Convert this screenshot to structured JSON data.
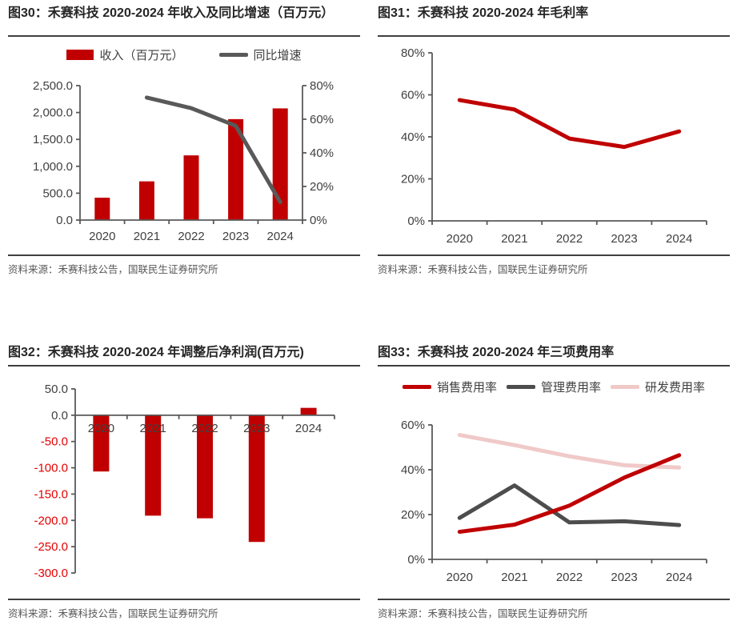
{
  "colors": {
    "red": "#c00000",
    "dark_gray": "#4d4d4d",
    "line_gray": "#595959",
    "pink": "#f0c9c9",
    "axis": "#595959",
    "tick_text": "#404040",
    "negative_tick": "#e60000",
    "title_text": "#262626",
    "source_text": "#595959"
  },
  "panels": [
    {
      "id": "fig30",
      "title": "图30：禾赛科技 2020-2024 年收入及同比增速（百万元）",
      "source": "资料来源：禾赛科技公告，国联民生证券研究所"
    },
    {
      "id": "fig31",
      "title": "图31：禾赛科技 2020-2024 年毛利率",
      "source": "资料来源：禾赛科技公告，国联民生证券研究所"
    },
    {
      "id": "fig32",
      "title": "图32：禾赛科技 2020-2024 年调整后净利润(百万元)",
      "source": "资料来源：禾赛科技公告，国联民生证券研究所"
    },
    {
      "id": "fig33",
      "title": "图33：禾赛科技 2020-2024 年三项费用率",
      "source": "资料来源：禾赛科技公告，国联民生证券研究所"
    }
  ],
  "chart_data": [
    {
      "id": "fig30",
      "type": "bar+line",
      "title": "禾赛科技 2020-2024 年收入及同比增速（百万元）",
      "categories": [
        "2020",
        "2021",
        "2022",
        "2023",
        "2024"
      ],
      "series": [
        {
          "name": "收入（百万元）",
          "type": "bar",
          "axis": "y1",
          "color": "#c00000",
          "values": [
            416,
            720,
            1203,
            1877,
            2077
          ]
        },
        {
          "name": "同比增速",
          "type": "line",
          "axis": "y2",
          "color": "#595959",
          "values": [
            null,
            72.9,
            66.6,
            56.1,
            10.7
          ]
        }
      ],
      "y1": {
        "min": 0,
        "max": 2500,
        "ticks": [
          {
            "v": 0,
            "label": "0.0"
          },
          {
            "v": 500,
            "label": "500.0"
          },
          {
            "v": 1000,
            "label": "1,000.0"
          },
          {
            "v": 1500,
            "label": "1,500.0"
          },
          {
            "v": 2000,
            "label": "2,000.0"
          },
          {
            "v": 2500,
            "label": "2,500.0"
          }
        ]
      },
      "y2": {
        "min": 0,
        "max": 80,
        "ticks": [
          {
            "v": 0,
            "label": "0%"
          },
          {
            "v": 20,
            "label": "20%"
          },
          {
            "v": 40,
            "label": "40%"
          },
          {
            "v": 60,
            "label": "60%"
          },
          {
            "v": 80,
            "label": "80%"
          }
        ]
      },
      "legend": [
        {
          "label": "收入（百万元）",
          "swatch": "bar",
          "color": "#c00000"
        },
        {
          "label": "同比增速",
          "swatch": "line",
          "color": "#595959"
        }
      ],
      "legend_position": "top",
      "grid": false
    },
    {
      "id": "fig31",
      "type": "line",
      "title": "禾赛科技 2020-2024 年毛利率",
      "categories": [
        "2020",
        "2021",
        "2022",
        "2023",
        "2024"
      ],
      "series": [
        {
          "name": "毛利率",
          "type": "line",
          "axis": "y1",
          "color": "#c00000",
          "values": [
            57.5,
            53.0,
            39.2,
            35.2,
            42.6
          ]
        }
      ],
      "y1": {
        "min": 0,
        "max": 80,
        "ticks": [
          {
            "v": 0,
            "label": "0%"
          },
          {
            "v": 20,
            "label": "20%"
          },
          {
            "v": 40,
            "label": "40%"
          },
          {
            "v": 60,
            "label": "60%"
          },
          {
            "v": 80,
            "label": "80%"
          }
        ]
      },
      "grid": false
    },
    {
      "id": "fig32",
      "type": "bar",
      "title": "禾赛科技 2020-2024 年调整后净利润(百万元)",
      "categories": [
        "2020",
        "2021",
        "2022",
        "2023",
        "2024"
      ],
      "series": [
        {
          "name": "调整后净利润",
          "type": "bar",
          "axis": "y1",
          "color": "#c00000",
          "values": [
            -107,
            -191,
            -196,
            -241,
            14
          ]
        }
      ],
      "y1": {
        "min": -300,
        "max": 50,
        "ticks": [
          {
            "v": 50,
            "label": "50.0"
          },
          {
            "v": 0,
            "label": "0.0"
          },
          {
            "v": -50,
            "label": "-50.0",
            "negative": true
          },
          {
            "v": -100,
            "label": "-100.0",
            "negative": true
          },
          {
            "v": -150,
            "label": "-150.0",
            "negative": true
          },
          {
            "v": -200,
            "label": "-200.0",
            "negative": true
          },
          {
            "v": -250,
            "label": "-250.0",
            "negative": true
          },
          {
            "v": -300,
            "label": "-300.0",
            "negative": true
          }
        ]
      },
      "x_labels_below_zero": true,
      "grid": false
    },
    {
      "id": "fig33",
      "type": "line",
      "title": "禾赛科技 2020-2024 年三项费用率",
      "categories": [
        "2020",
        "2021",
        "2022",
        "2023",
        "2024"
      ],
      "series": [
        {
          "name": "研发费用率",
          "type": "line",
          "axis": "y1",
          "color": "#f0c9c9",
          "values": [
            55.5,
            51.0,
            46.0,
            42.0,
            41.0
          ]
        },
        {
          "name": "管理费用率",
          "type": "line",
          "axis": "y1",
          "color": "#4d4d4d",
          "values": [
            18.5,
            33.0,
            16.5,
            17.0,
            15.3
          ]
        },
        {
          "name": "销售费用率",
          "type": "line",
          "axis": "y1",
          "color": "#c00000",
          "values": [
            12.3,
            15.5,
            24.0,
            36.5,
            46.5
          ]
        }
      ],
      "y1": {
        "min": 0,
        "max": 60,
        "ticks": [
          {
            "v": 0,
            "label": "0%"
          },
          {
            "v": 20,
            "label": "20%"
          },
          {
            "v": 40,
            "label": "40%"
          },
          {
            "v": 60,
            "label": "60%"
          }
        ]
      },
      "legend": [
        {
          "label": "销售费用率",
          "swatch": "line",
          "color": "#c00000"
        },
        {
          "label": "管理费用率",
          "swatch": "line",
          "color": "#4d4d4d"
        },
        {
          "label": "研发费用率",
          "swatch": "line",
          "color": "#f0c9c9"
        }
      ],
      "legend_position": "top",
      "grid": false
    }
  ]
}
